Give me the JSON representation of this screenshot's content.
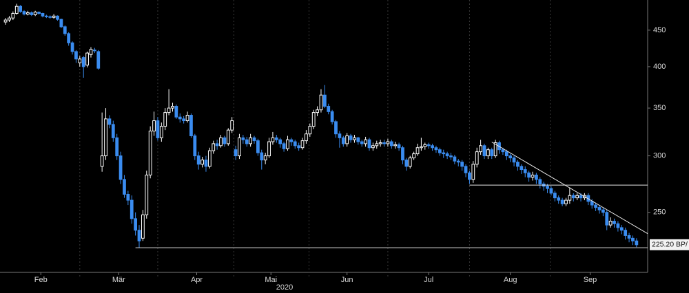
{
  "chart_data": {
    "type": "candlestick",
    "log_y": true,
    "ylim": [
      206,
      496
    ],
    "yticks": [
      250,
      300,
      350,
      400,
      450
    ],
    "xlim": [
      -1.5,
      173
    ],
    "xticks": [
      {
        "value": 9.5,
        "label": "Feb"
      },
      {
        "value": 30.5,
        "label": "Mär"
      },
      {
        "value": 51.5,
        "label": "Apr"
      },
      {
        "value": 71.5,
        "label": "Mai"
      },
      {
        "value": 92,
        "label": "Jun"
      },
      {
        "value": 114,
        "label": "Jul"
      },
      {
        "value": 136,
        "label": "Aug"
      },
      {
        "value": 157.5,
        "label": "Sep"
      }
    ],
    "year_label": "2020",
    "up_color": "#ffffff",
    "down_color": "#3a8cf0",
    "open": [
      462,
      465,
      468,
      475,
      486,
      478,
      474,
      476,
      473,
      477,
      475,
      471,
      470,
      469,
      471,
      466,
      455,
      445,
      432,
      420,
      405,
      412,
      402,
      416,
      422,
      420,
      290,
      300,
      338,
      332,
      318,
      300,
      278,
      265,
      260,
      245,
      236,
      230,
      248,
      282,
      325,
      336,
      318,
      330,
      345,
      350,
      352,
      340,
      338,
      336,
      342,
      320,
      300,
      292,
      296,
      290,
      305,
      312,
      310,
      318,
      312,
      326,
      306,
      300,
      318,
      316,
      312,
      318,
      315,
      303,
      296,
      300,
      314,
      318,
      316,
      312,
      307,
      316,
      314,
      310,
      308,
      315,
      322,
      330,
      345,
      348,
      365,
      352,
      346,
      335,
      322,
      318,
      312,
      320,
      316,
      318,
      314,
      312,
      316,
      308,
      310,
      312,
      313,
      312,
      314,
      310,
      311,
      308,
      296,
      290,
      298,
      302,
      308,
      309,
      311,
      310,
      308,
      306,
      303,
      302,
      300,
      299,
      295,
      294,
      290,
      284,
      278,
      292,
      304,
      310,
      300,
      306,
      300,
      313,
      306,
      304,
      300,
      298,
      294,
      290,
      287,
      284,
      280,
      282,
      278,
      274,
      272,
      270,
      266,
      262,
      260,
      257,
      260,
      264,
      262,
      264,
      262,
      264,
      259,
      256,
      254,
      252,
      250,
      240,
      243,
      241,
      238,
      236,
      232,
      230,
      228
    ],
    "high": [
      468,
      471,
      478,
      490,
      488,
      480,
      479,
      478,
      479,
      478,
      476,
      473,
      472,
      474,
      472,
      467,
      457,
      447,
      434,
      422,
      414,
      414,
      420,
      426,
      425,
      422,
      345,
      350,
      342,
      336,
      322,
      304,
      282,
      268,
      264,
      250,
      240,
      252,
      286,
      330,
      346,
      340,
      334,
      350,
      372,
      356,
      354,
      344,
      341,
      346,
      344,
      322,
      304,
      299,
      300,
      308,
      315,
      316,
      321,
      320,
      328,
      340,
      310,
      322,
      321,
      319,
      322,
      320,
      317,
      306,
      303,
      318,
      324,
      321,
      318,
      314,
      320,
      318,
      316,
      313,
      318,
      326,
      333,
      348,
      352,
      372,
      377,
      355,
      348,
      337,
      325,
      320,
      323,
      322,
      321,
      319,
      316,
      319,
      318,
      313,
      315,
      316,
      316,
      317,
      316,
      314,
      313,
      310,
      298,
      300,
      304,
      312,
      318,
      313,
      313,
      312,
      310,
      308,
      306,
      304,
      303,
      301,
      297,
      296,
      292,
      286,
      295,
      308,
      316,
      312,
      308,
      308,
      316,
      315,
      308,
      306,
      302,
      300,
      296,
      292,
      290,
      286,
      285,
      284,
      280,
      276,
      274,
      272,
      268,
      264,
      262,
      262,
      271,
      266,
      266,
      266,
      266,
      266,
      261,
      258,
      256,
      254,
      252,
      246,
      245,
      243,
      240,
      238,
      234,
      232,
      230
    ],
    "low": [
      458,
      462,
      465,
      473,
      476,
      472,
      472,
      471,
      471,
      473,
      469,
      468,
      467,
      467,
      464,
      453,
      442,
      428,
      416,
      405,
      400,
      386,
      399,
      412,
      418,
      396,
      285,
      296,
      328,
      314,
      296,
      274,
      262,
      256,
      241,
      232,
      223,
      228,
      245,
      279,
      320,
      315,
      314,
      326,
      342,
      346,
      338,
      334,
      333,
      334,
      318,
      296,
      287,
      289,
      285,
      288,
      302,
      306,
      308,
      309,
      310,
      323,
      296,
      297,
      312,
      309,
      309,
      312,
      300,
      287,
      292,
      298,
      311,
      313,
      308,
      304,
      305,
      310,
      307,
      305,
      306,
      312,
      319,
      327,
      341,
      345,
      350,
      343,
      332,
      318,
      308,
      309,
      309,
      313,
      313,
      311,
      309,
      309,
      305,
      305,
      307,
      309,
      309,
      309,
      307,
      307,
      305,
      292,
      286,
      288,
      296,
      300,
      305,
      306,
      307,
      305,
      303,
      300,
      298,
      297,
      296,
      292,
      290,
      286,
      280,
      274,
      275,
      289,
      301,
      297,
      297,
      297,
      298,
      302,
      301,
      296,
      294,
      290,
      286,
      283,
      280,
      276,
      277,
      274,
      270,
      268,
      266,
      264,
      259,
      257,
      255,
      255,
      257,
      259,
      260,
      259,
      260,
      256,
      253,
      251,
      249,
      247,
      236,
      238,
      238,
      235,
      233,
      229,
      227,
      225,
      223.5
    ],
    "close": [
      465,
      468,
      475,
      486,
      478,
      474,
      476,
      473,
      477,
      475,
      471,
      470,
      469,
      471,
      466,
      455,
      445,
      432,
      420,
      410,
      410,
      400,
      418,
      423,
      421,
      398,
      300,
      338,
      332,
      318,
      300,
      278,
      265,
      260,
      245,
      236,
      228,
      248,
      282,
      325,
      336,
      318,
      330,
      345,
      350,
      352,
      340,
      338,
      336,
      342,
      320,
      300,
      292,
      296,
      290,
      305,
      312,
      310,
      318,
      312,
      326,
      336,
      300,
      318,
      316,
      312,
      318,
      315,
      303,
      296,
      300,
      314,
      318,
      316,
      312,
      307,
      316,
      314,
      310,
      308,
      315,
      322,
      330,
      345,
      348,
      365,
      352,
      346,
      335,
      322,
      318,
      312,
      320,
      316,
      318,
      314,
      312,
      316,
      308,
      310,
      312,
      313,
      312,
      314,
      310,
      311,
      308,
      296,
      290,
      298,
      302,
      308,
      309,
      311,
      310,
      308,
      306,
      303,
      302,
      300,
      299,
      295,
      294,
      290,
      284,
      278,
      292,
      304,
      310,
      300,
      306,
      300,
      313,
      306,
      304,
      300,
      298,
      294,
      290,
      287,
      284,
      280,
      282,
      278,
      274,
      272,
      270,
      266,
      262,
      260,
      257,
      260,
      264,
      262,
      264,
      262,
      264,
      259,
      256,
      254,
      252,
      250,
      240,
      243,
      241,
      238,
      236,
      232,
      230,
      228,
      225.2
    ],
    "last_price_label": "225.20 BP/",
    "reference_lines": [
      {
        "x": [
          35,
          173
        ],
        "values": [
          223,
          223
        ]
      },
      {
        "x": [
          125,
          173
        ],
        "values": [
          273,
          273
        ]
      },
      {
        "x": [
          131,
          173
        ],
        "values": [
          313.6,
          233.4
        ]
      }
    ]
  }
}
